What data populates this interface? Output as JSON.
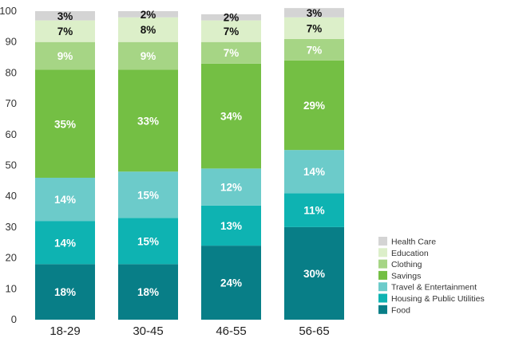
{
  "chart_data": {
    "type": "bar",
    "stacked": true,
    "title": "",
    "xlabel": "",
    "ylabel": "",
    "ylim": [
      0,
      100
    ],
    "yticks": [
      0,
      10,
      20,
      30,
      40,
      50,
      60,
      70,
      80,
      90,
      100
    ],
    "categories": [
      "18-29",
      "30-45",
      "46-55",
      "56-65"
    ],
    "legend_position": "bottom-right",
    "series": [
      {
        "name": "Food",
        "color": "#087e87",
        "label_color": "#ffffff",
        "values": [
          18,
          18,
          24,
          30
        ],
        "labels": [
          "18%",
          "18%",
          "24%",
          "30%"
        ]
      },
      {
        "name": "Housing & Public Utilities",
        "color": "#0eb3b2",
        "label_color": "#ffffff",
        "values": [
          14,
          15,
          13,
          11
        ],
        "labels": [
          "14%",
          "15%",
          "13%",
          "11%"
        ]
      },
      {
        "name": "Travel & Entertainment",
        "color": "#6ccbca",
        "label_color": "#ffffff",
        "values": [
          14,
          15,
          12,
          14
        ],
        "labels": [
          "14%",
          "15%",
          "12%",
          "14%"
        ]
      },
      {
        "name": "Savings",
        "color": "#74bf44",
        "label_color": "#ffffff",
        "values": [
          35,
          33,
          34,
          29
        ],
        "labels": [
          "35%",
          "33%",
          "34%",
          "29%"
        ]
      },
      {
        "name": "Clothing",
        "color": "#a6d585",
        "label_color": "#ffffff",
        "values": [
          9,
          9,
          7,
          7
        ],
        "labels": [
          "9%",
          "9%",
          "7%",
          "7%"
        ]
      },
      {
        "name": "Education",
        "color": "#dcefc9",
        "label_color": "#111111",
        "values": [
          7,
          8,
          7,
          7
        ],
        "labels": [
          "7%",
          "8%",
          "7%",
          "7%"
        ]
      },
      {
        "name": "Health Care",
        "color": "#d4d4d4",
        "label_color": "#111111",
        "values": [
          3,
          2,
          2,
          3
        ],
        "labels": [
          "3%",
          "2%",
          "2%",
          "3%"
        ]
      }
    ]
  }
}
